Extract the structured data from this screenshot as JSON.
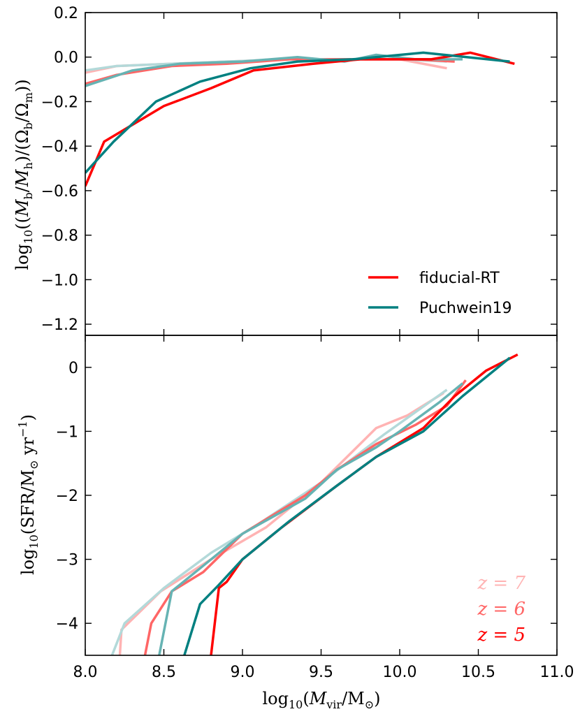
{
  "colors": {
    "fiducial_z5": "#ff0000",
    "fiducial_z6": "#ff6666",
    "fiducial_z7": "#ffb3b3",
    "puch_z5": "#008080",
    "puch_z6": "#66b3b3",
    "puch_z7": "#b3d9d9"
  },
  "chart_data": [
    {
      "type": "line",
      "panel": "top",
      "ylabel": "log10((M_b/M_h)/(Ω_b/Ω_m))",
      "ylim": [
        -1.25,
        0.2
      ],
      "yticks": [
        "0.2",
        "0.0",
        "−0.2",
        "−0.4",
        "−0.6",
        "−0.8",
        "−1.0",
        "−1.2"
      ],
      "ytick_values": [
        0.2,
        0.0,
        -0.2,
        -0.4,
        -0.6,
        -0.8,
        -1.0,
        -1.2
      ],
      "legend": {
        "placement": "lower-right",
        "entries": [
          "fiducial-RT",
          "Puchwein19"
        ]
      },
      "series": [
        {
          "model": "fiducial",
          "z": 7,
          "color_key": "fiducial_z7",
          "x": [
            8.0,
            8.2,
            8.55,
            8.9,
            9.3,
            9.7,
            10.0,
            10.3
          ],
          "y": [
            -0.07,
            -0.04,
            -0.03,
            -0.02,
            -0.01,
            -0.01,
            -0.01,
            -0.05
          ]
        },
        {
          "model": "puch",
          "z": 7,
          "color_key": "puch_z7",
          "x": [
            8.0,
            8.2,
            8.55,
            8.9,
            9.3,
            9.7,
            10.0,
            10.3
          ],
          "y": [
            -0.06,
            -0.04,
            -0.03,
            -0.02,
            -0.01,
            -0.01,
            -0.01,
            -0.02
          ]
        },
        {
          "model": "fiducial",
          "z": 6,
          "color_key": "fiducial_z6",
          "x": [
            8.0,
            8.2,
            8.55,
            8.9,
            9.3,
            9.7,
            10.1,
            10.35
          ],
          "y": [
            -0.12,
            -0.08,
            -0.04,
            -0.03,
            -0.01,
            -0.01,
            -0.01,
            -0.02
          ]
        },
        {
          "model": "puch",
          "z": 6,
          "color_key": "puch_z6",
          "x": [
            8.0,
            8.3,
            8.6,
            9.0,
            9.35,
            9.65,
            9.85,
            10.1,
            10.4
          ],
          "y": [
            -0.13,
            -0.06,
            -0.03,
            -0.02,
            0.0,
            -0.02,
            0.01,
            -0.01,
            -0.01
          ]
        },
        {
          "model": "fiducial",
          "z": 5,
          "color_key": "fiducial_z5",
          "x": [
            8.0,
            8.12,
            8.5,
            8.8,
            9.07,
            9.45,
            9.75,
            10.2,
            10.45,
            10.73
          ],
          "y": [
            -0.58,
            -0.38,
            -0.22,
            -0.14,
            -0.06,
            -0.03,
            -0.01,
            -0.01,
            0.02,
            -0.03
          ]
        },
        {
          "model": "puch",
          "z": 5,
          "color_key": "puch_z5",
          "x": [
            8.0,
            8.18,
            8.45,
            8.73,
            9.05,
            9.35,
            9.7,
            10.15,
            10.7
          ],
          "y": [
            -0.52,
            -0.38,
            -0.2,
            -0.11,
            -0.05,
            -0.02,
            -0.01,
            0.02,
            -0.02
          ]
        }
      ]
    },
    {
      "type": "line",
      "panel": "bottom",
      "xlabel": "log10(M_vir/M_⊙)",
      "ylabel": "log10(SFR/M_⊙ yr^-1)",
      "xlim": [
        8.0,
        11.0
      ],
      "ylim": [
        -4.5,
        0.5
      ],
      "xticks": [
        "8.0",
        "8.5",
        "9.0",
        "9.5",
        "10.0",
        "10.5",
        "11.0"
      ],
      "xtick_values": [
        8.0,
        8.5,
        9.0,
        9.5,
        10.0,
        10.5,
        11.0
      ],
      "yticks": [
        "0",
        "−1",
        "−2",
        "−3",
        "−4"
      ],
      "ytick_values": [
        0,
        -1,
        -2,
        -3,
        -4
      ],
      "annotations": [
        "z = 7",
        "z = 6",
        "z = 5"
      ],
      "series": [
        {
          "model": "fiducial",
          "z": 7,
          "color_key": "fiducial_z7",
          "x": [
            8.22,
            8.23,
            8.48,
            8.8,
            9.15,
            9.5,
            9.85,
            10.05,
            10.28
          ],
          "y": [
            -4.5,
            -4.1,
            -3.5,
            -3.0,
            -2.5,
            -1.8,
            -0.95,
            -0.75,
            -0.4
          ]
        },
        {
          "model": "puch",
          "z": 7,
          "color_key": "puch_z7",
          "x": [
            8.17,
            8.25,
            8.5,
            8.8,
            9.1,
            9.5,
            9.9,
            10.1,
            10.3
          ],
          "y": [
            -4.5,
            -4.0,
            -3.45,
            -2.9,
            -2.45,
            -1.8,
            -1.05,
            -0.7,
            -0.35
          ]
        },
        {
          "model": "fiducial",
          "z": 6,
          "color_key": "fiducial_z6",
          "x": [
            8.38,
            8.42,
            8.55,
            8.75,
            9.0,
            9.4,
            9.6,
            9.85,
            10.1,
            10.3,
            10.42
          ],
          "y": [
            -4.5,
            -4.0,
            -3.5,
            -3.2,
            -2.6,
            -2.0,
            -1.6,
            -1.2,
            -0.9,
            -0.6,
            -0.2
          ]
        },
        {
          "model": "puch",
          "z": 6,
          "color_key": "puch_z6",
          "x": [
            8.47,
            8.55,
            8.75,
            9.0,
            9.4,
            9.6,
            9.85,
            10.0,
            10.25,
            10.4
          ],
          "y": [
            -4.5,
            -3.5,
            -3.1,
            -2.6,
            -2.05,
            -1.6,
            -1.25,
            -1.0,
            -0.55,
            -0.25
          ]
        },
        {
          "model": "fiducial",
          "z": 5,
          "color_key": "fiducial_z5",
          "x": [
            8.8,
            8.85,
            8.9,
            9.0,
            9.25,
            9.6,
            9.85,
            10.15,
            10.35,
            10.55,
            10.75
          ],
          "y": [
            -4.5,
            -3.45,
            -3.35,
            -3.0,
            -2.5,
            -1.85,
            -1.4,
            -0.95,
            -0.45,
            -0.05,
            0.2
          ]
        },
        {
          "model": "puch",
          "z": 5,
          "color_key": "puch_z5",
          "x": [
            8.63,
            8.73,
            8.85,
            9.0,
            9.3,
            9.6,
            9.85,
            10.15,
            10.4,
            10.7
          ],
          "y": [
            -4.5,
            -3.7,
            -3.4,
            -3.0,
            -2.4,
            -1.85,
            -1.4,
            -1.0,
            -0.45,
            0.15
          ]
        }
      ]
    }
  ]
}
